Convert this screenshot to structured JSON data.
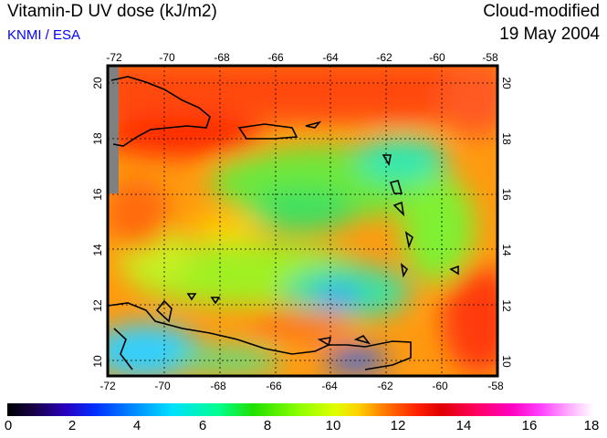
{
  "header": {
    "title": "Vitamin-D UV dose (kJ/m2)",
    "credit": "KNMI / ESA",
    "product": "Cloud-modified",
    "date": "19 May 2004"
  },
  "map": {
    "longitude_ticks": [
      "-72",
      "-70",
      "-68",
      "-66",
      "-64",
      "-62",
      "-60",
      "-58"
    ],
    "latitude_ticks": [
      "10",
      "12",
      "14",
      "16",
      "18",
      "20"
    ],
    "colors": {
      "land_outline": "#000000",
      "grid": "#000000",
      "no_data": "#808080"
    }
  },
  "colorbar": {
    "labels": [
      "0",
      "2",
      "4",
      "6",
      "8",
      "10",
      "12",
      "14",
      "16",
      "18"
    ]
  }
}
